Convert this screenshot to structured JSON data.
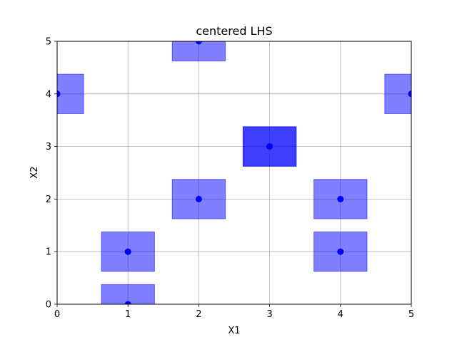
{
  "chart_data": {
    "type": "scatter",
    "title": "centered LHS",
    "xlabel": "X1",
    "ylabel": "X2",
    "xlim": [
      0,
      5
    ],
    "ylim": [
      0,
      5
    ],
    "xticks": [
      "0",
      "1",
      "2",
      "3",
      "4",
      "5"
    ],
    "yticks": [
      "0",
      "1",
      "2",
      "3",
      "4",
      "5"
    ],
    "grid": true,
    "point_color": "#0000ff",
    "box_color": "#0000ff",
    "box_opacity": 0.5,
    "box_half_width": 0.375,
    "points": [
      {
        "x": 0,
        "y": 4
      },
      {
        "x": 1,
        "y": 0
      },
      {
        "x": 1,
        "y": 1
      },
      {
        "x": 2,
        "y": 2
      },
      {
        "x": 2,
        "y": 5
      },
      {
        "x": 3,
        "y": 3
      },
      {
        "x": 3,
        "y": 3
      },
      {
        "x": 4,
        "y": 1
      },
      {
        "x": 4,
        "y": 2
      },
      {
        "x": 5,
        "y": 4
      }
    ]
  }
}
